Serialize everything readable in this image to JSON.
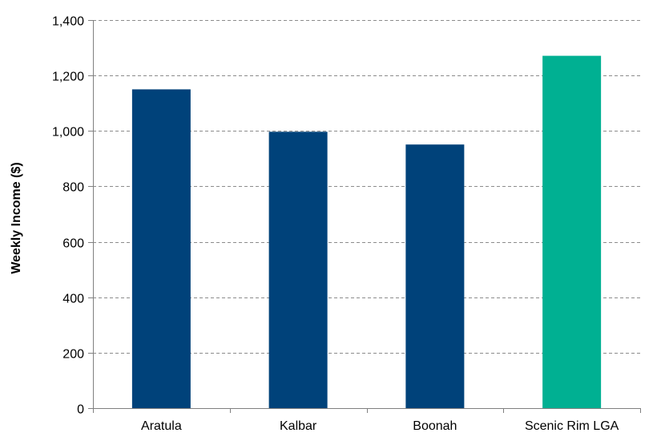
{
  "chart_data": {
    "type": "bar",
    "title": "",
    "xlabel": "",
    "ylabel": "Weekly Income ($)",
    "categories": [
      "Aratula",
      "Kalbar",
      "Boonah",
      "Scenic Rim LGA"
    ],
    "values": [
      1150,
      997,
      951,
      1271
    ],
    "bar_colors": [
      "#00427A",
      "#00427A",
      "#00427A",
      "#00B092"
    ],
    "ylim": [
      0,
      1400
    ],
    "yticks": [
      0,
      200,
      400,
      600,
      800,
      1000,
      1200,
      1400
    ],
    "ytick_labels": [
      "0",
      "200",
      "400",
      "600",
      "800",
      "1,000",
      "1,200",
      "1,400"
    ],
    "grid": true,
    "grid_style": "dashed"
  }
}
